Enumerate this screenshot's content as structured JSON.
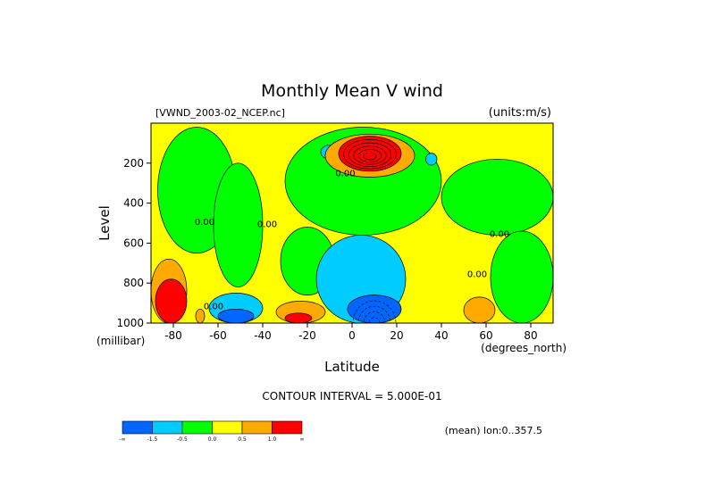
{
  "chart_data": {
    "type": "heatmap",
    "title": "Monthly Mean V wind",
    "file_label": "[VWND_2003-02_NCEP.nc]",
    "units_label": "(units:m/s)",
    "xlabel": "Latitude",
    "x_unit_label": "(degrees_north)",
    "ylabel": "Level",
    "y_unit_label": "(millibar)",
    "xlim": [
      -90,
      90
    ],
    "ylim": [
      1000,
      0
    ],
    "x_ticks": [
      -80,
      -60,
      -40,
      -20,
      0,
      20,
      40,
      60,
      80
    ],
    "y_ticks": [
      200,
      400,
      600,
      800,
      1000
    ],
    "contour_interval_text": "CONTOUR INTERVAL = 5.000E-01",
    "mean_text": "(mean) lon:0..357.5",
    "contour_labels": [
      {
        "text": "0.00",
        "lat": -66,
        "lev": 510
      },
      {
        "text": "0.00",
        "lat": -38,
        "lev": 520
      },
      {
        "text": "0.00",
        "lat": -3,
        "lev": 265
      },
      {
        "text": "0.00",
        "lat": 66,
        "lev": 570
      },
      {
        "text": "0.00",
        "lat": 56,
        "lev": 770
      },
      {
        "text": "0.00",
        "lat": -62,
        "lev": 930
      }
    ],
    "colorbar": {
      "colors": [
        "#0066ff",
        "#00ccff",
        "#00ff00",
        "#ffff00",
        "#ffaa00",
        "#ff0000"
      ],
      "labels": [
        "-∞",
        "-1.5",
        "-0.5",
        "0.0",
        "0.5",
        "1.0",
        "∞"
      ]
    },
    "regions": [
      {
        "color": "#ffff00",
        "lat": [
          -90,
          90
        ],
        "lev": [
          0,
          1000
        ]
      },
      {
        "color": "#00ff00",
        "lat": [
          -87,
          -52
        ],
        "lev": [
          20,
          650
        ]
      },
      {
        "color": "#00ff00",
        "lat": [
          -62,
          -40
        ],
        "lev": [
          200,
          820
        ]
      },
      {
        "color": "#00ff00",
        "lat": [
          -30,
          40
        ],
        "lev": [
          20,
          560
        ]
      },
      {
        "color": "#00ff00",
        "lat": [
          -32,
          -8
        ],
        "lev": [
          520,
          860
        ]
      },
      {
        "color": "#00ff00",
        "lat": [
          40,
          90
        ],
        "lev": [
          180,
          560
        ]
      },
      {
        "color": "#00ff00",
        "lat": [
          62,
          90
        ],
        "lev": [
          540,
          1000
        ]
      },
      {
        "color": "#00ccff",
        "lat": [
          -16,
          24
        ],
        "lev": [
          560,
          1000
        ]
      },
      {
        "color": "#00ccff",
        "lat": [
          -64,
          -40
        ],
        "lev": [
          850,
          1000
        ]
      },
      {
        "color": "#00ccff",
        "lat": [
          -14,
          -6
        ],
        "lev": [
          110,
          180
        ]
      },
      {
        "color": "#00ccff",
        "lat": [
          33,
          38
        ],
        "lev": [
          150,
          210
        ]
      },
      {
        "color": "#0066ff",
        "lat": [
          -2,
          22
        ],
        "lev": [
          860,
          1000
        ]
      },
      {
        "color": "#0066ff",
        "lat": [
          -60,
          -44
        ],
        "lev": [
          930,
          1000
        ]
      },
      {
        "color": "#ffaa00",
        "lat": [
          -12,
          28
        ],
        "lev": [
          55,
          270
        ]
      },
      {
        "color": "#ffaa00",
        "lat": [
          -34,
          -12
        ],
        "lev": [
          890,
          1000
        ]
      },
      {
        "color": "#ffaa00",
        "lat": [
          -90,
          -74
        ],
        "lev": [
          680,
          1000
        ]
      },
      {
        "color": "#ffaa00",
        "lat": [
          -70,
          -66
        ],
        "lev": [
          930,
          1000
        ]
      },
      {
        "color": "#ffaa00",
        "lat": [
          50,
          64
        ],
        "lev": [
          870,
          1000
        ]
      },
      {
        "color": "#ff0000",
        "lat": [
          -6,
          22
        ],
        "lev": [
          65,
          240
        ]
      },
      {
        "color": "#ff0000",
        "lat": [
          -30,
          -18
        ],
        "lev": [
          950,
          1000
        ]
      },
      {
        "color": "#ff0000",
        "lat": [
          -88,
          -74
        ],
        "lev": [
          780,
          1000
        ]
      }
    ]
  }
}
